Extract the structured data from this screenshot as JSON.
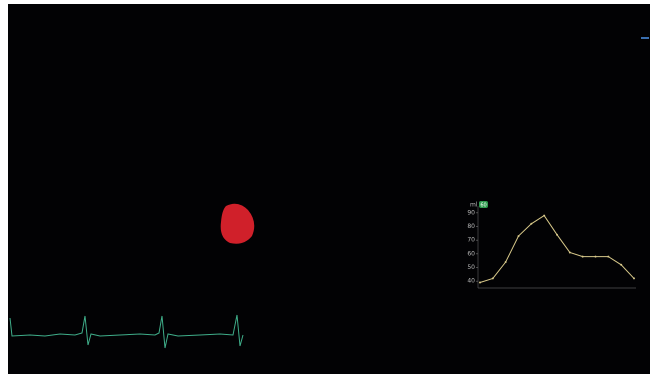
{
  "chart_data": {
    "type": "line",
    "y_label": "ml",
    "badge": "60",
    "categories": [
      null,
      null,
      null,
      null,
      null,
      null,
      null,
      null,
      null,
      null,
      null,
      null,
      null
    ],
    "values": [
      39,
      42,
      54,
      73,
      82,
      88,
      74,
      61,
      58,
      58,
      58,
      52,
      42
    ],
    "color": "#d8c98a",
    "ylim": [
      35,
      95
    ],
    "yticks": [
      40,
      50,
      60,
      70,
      80,
      90
    ]
  }
}
